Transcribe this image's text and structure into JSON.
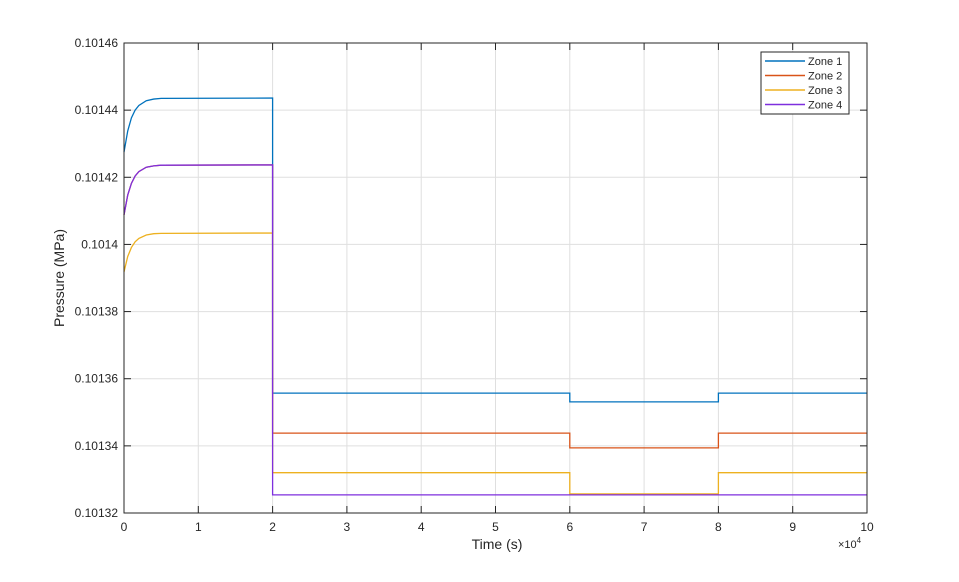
{
  "chart_data": {
    "type": "line",
    "title": "",
    "xlabel": "Time (s)",
    "ylabel": "Pressure (MPa)",
    "x_exponent_label": "×10",
    "x_exponent_power": "4",
    "xlim": [
      0,
      100000
    ],
    "ylim": [
      0.10132,
      0.10146
    ],
    "x_ticks": [
      0,
      10000,
      20000,
      30000,
      40000,
      50000,
      60000,
      70000,
      80000,
      90000,
      100000
    ],
    "x_tick_labels": [
      "0",
      "1",
      "2",
      "3",
      "4",
      "5",
      "6",
      "7",
      "8",
      "9",
      "10"
    ],
    "y_ticks": [
      0.10132,
      0.10134,
      0.10136,
      0.10138,
      0.1014,
      0.10142,
      0.10144,
      0.10146
    ],
    "y_tick_labels": [
      "0.10132",
      "0.10134",
      "0.10136",
      "0.10138",
      "0.1014",
      "0.10142",
      "0.10144",
      "0.10146"
    ],
    "grid": true,
    "legend_placement": "top-right",
    "x": [
      0,
      500,
      1000,
      1500,
      2000,
      3000,
      4000,
      5000,
      20000,
      20000,
      60000,
      60000,
      80000,
      80000,
      100000
    ],
    "series": [
      {
        "name": "Zone 1",
        "color": "#0072BD",
        "values": [
          0.1014275,
          0.1014338,
          0.1014377,
          0.10144,
          0.1014414,
          0.1014428,
          0.1014433,
          0.1014435,
          0.1014436,
          0.1013557,
          0.1013557,
          0.1013531,
          0.1013531,
          0.1013557,
          0.1013557
        ]
      },
      {
        "name": "Zone 2",
        "color": "#D95319",
        "values": [
          0.1014088,
          0.1014147,
          0.1014182,
          0.1014204,
          0.1014217,
          0.101423,
          0.1014234,
          0.1014236,
          0.1014237,
          0.1013438,
          0.1013438,
          0.1013394,
          0.1013394,
          0.1013438,
          0.1013438
        ]
      },
      {
        "name": "Zone 3",
        "color": "#EDB120",
        "values": [
          0.1013918,
          0.1013964,
          0.1013991,
          0.1014008,
          0.1014018,
          0.1014028,
          0.1014032,
          0.1014033,
          0.1014034,
          0.101332,
          0.101332,
          0.1013257,
          0.1013257,
          0.101332,
          0.101332
        ]
      },
      {
        "name": "Zone 4",
        "color": "#7E2FDE",
        "values": [
          0.1014088,
          0.1014147,
          0.1014182,
          0.1014204,
          0.1014217,
          0.101423,
          0.1014234,
          0.1014236,
          0.1014237,
          0.1013254,
          0.1013254,
          0.1013254,
          0.1013254,
          0.1013254,
          0.1013254
        ]
      }
    ]
  }
}
